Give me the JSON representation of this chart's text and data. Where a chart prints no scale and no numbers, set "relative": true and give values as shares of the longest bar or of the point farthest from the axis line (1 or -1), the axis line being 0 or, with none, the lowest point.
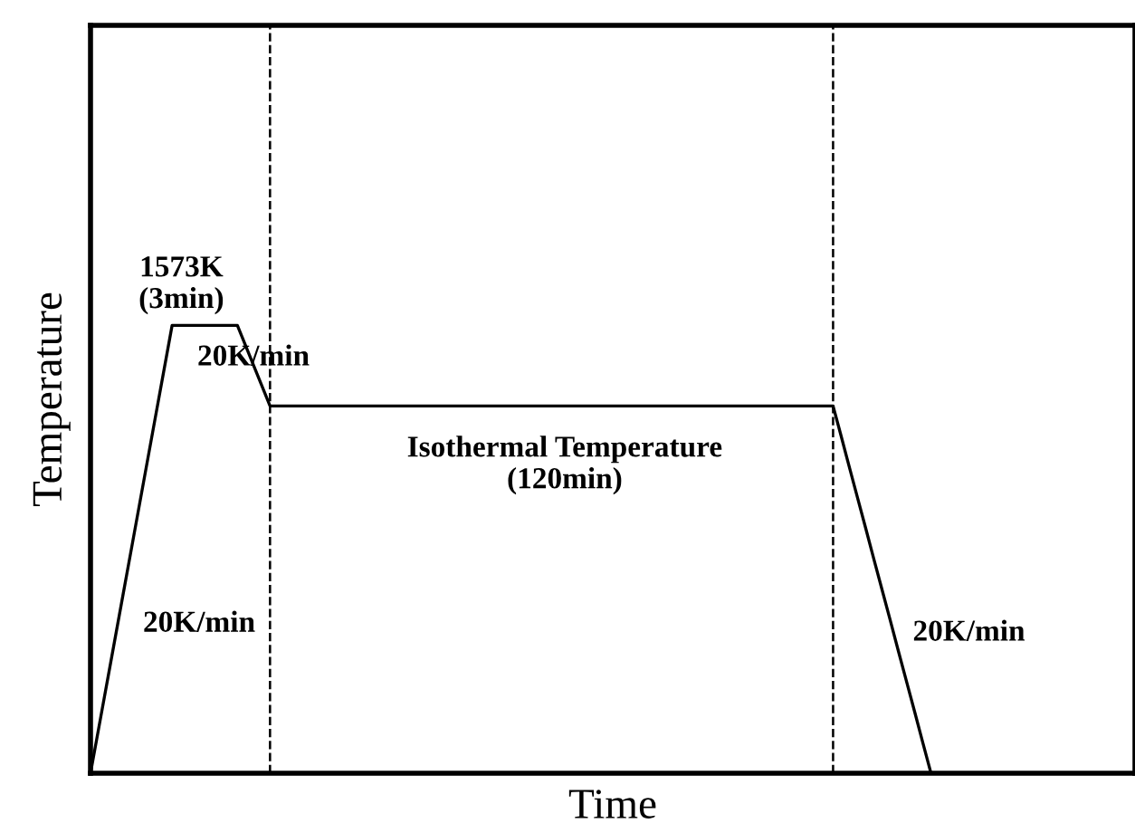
{
  "chart_data": {
    "type": "line",
    "relative": true,
    "xlabel": "Time",
    "ylabel": "Temperature",
    "tick_labels": false,
    "categories": [
      null,
      null,
      null,
      null,
      null,
      null,
      null,
      null,
      null,
      null,
      null,
      null,
      null,
      null,
      null,
      null,
      null,
      null,
      null,
      null,
      null,
      null,
      null,
      null,
      null,
      null,
      null,
      null,
      null,
      null,
      null,
      null,
      null,
      null,
      null,
      null,
      null,
      null,
      null,
      null,
      null,
      null,
      null,
      null,
      null,
      null,
      null,
      null,
      null,
      null,
      null,
      null,
      null,
      null,
      null,
      null,
      null,
      null,
      null,
      null,
      null,
      null,
      null,
      null,
      null,
      null,
      null,
      null,
      null,
      null,
      null,
      null,
      null,
      null,
      null,
      null,
      null,
      null,
      null,
      null,
      null,
      null,
      null,
      null,
      null,
      null,
      null,
      null,
      null,
      null,
      null,
      null,
      null,
      null,
      null,
      null,
      null,
      null,
      null,
      null,
      null,
      null,
      null,
      null,
      null,
      null,
      null,
      null,
      null,
      null,
      null,
      null,
      null,
      null,
      null,
      null,
      null,
      null,
      null,
      null,
      null,
      null,
      null,
      null,
      null,
      null,
      null,
      null,
      null
    ],
    "series": [
      {
        "color": "#000000",
        "values": [
          0,
          0.1,
          0.2,
          0.3,
          0.4,
          0.5,
          0.6,
          0.7,
          0.8,
          0.9,
          1,
          1,
          1,
          1,
          1,
          1,
          1,
          1,
          1,
          0.955,
          0.91,
          0.865,
          0.82,
          0.82,
          0.82,
          0.82,
          0.82,
          0.82,
          0.82,
          0.82,
          0.82,
          0.82,
          0.82,
          0.82,
          0.82,
          0.82,
          0.82,
          0.82,
          0.82,
          0.82,
          0.82,
          0.82,
          0.82,
          0.82,
          0.82,
          0.82,
          0.82,
          0.82,
          0.82,
          0.82,
          0.82,
          0.82,
          0.82,
          0.82,
          0.82,
          0.82,
          0.82,
          0.82,
          0.82,
          0.82,
          0.82,
          0.82,
          0.82,
          0.82,
          0.82,
          0.82,
          0.82,
          0.82,
          0.82,
          0.82,
          0.82,
          0.82,
          0.82,
          0.82,
          0.82,
          0.82,
          0.82,
          0.82,
          0.82,
          0.82,
          0.82,
          0.82,
          0.82,
          0.82,
          0.82,
          0.82,
          0.82,
          0.82,
          0.82,
          0.82,
          0.82,
          0.82,
          0.752,
          0.683,
          0.615,
          0.547,
          0.478,
          0.41,
          0.342,
          0.273,
          0.205,
          0.137,
          0.068,
          0,
          null,
          null,
          null,
          null,
          null,
          null,
          null,
          null,
          null,
          null,
          null,
          null,
          null,
          null,
          null,
          null,
          null,
          null,
          null,
          null,
          null,
          null,
          null,
          null,
          null
        ]
      }
    ],
    "annotations": [
      "1573K\n(3min)",
      "20K/min",
      "Isothermal Temperature\n(120min)",
      "20K/min",
      "20K/min"
    ]
  }
}
